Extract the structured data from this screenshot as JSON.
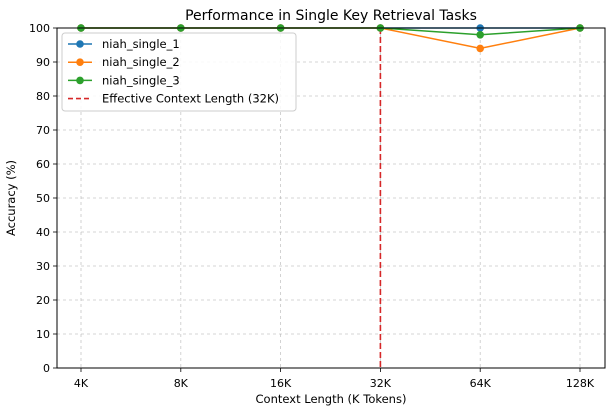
{
  "chart_data": {
    "type": "line",
    "title": "Performance in Single Key Retrieval Tasks",
    "xlabel": "Context Length (K Tokens)",
    "ylabel": "Accuracy (%)",
    "categories": [
      "4K",
      "8K",
      "16K",
      "32K",
      "64K",
      "128K"
    ],
    "ylim": [
      0,
      100
    ],
    "yticks": [
      0,
      10,
      20,
      30,
      40,
      50,
      60,
      70,
      80,
      90,
      100
    ],
    "grid": true,
    "legend_position": "top-left",
    "series": [
      {
        "name": "niah_single_1",
        "color": "#1f77b4",
        "values": [
          100,
          100,
          100,
          100,
          100,
          100
        ]
      },
      {
        "name": "niah_single_2",
        "color": "#ff7f0e",
        "values": [
          100,
          100,
          100,
          100,
          94,
          100
        ]
      },
      {
        "name": "niah_single_3",
        "color": "#2ca02c",
        "values": [
          100,
          100,
          100,
          100,
          98,
          100
        ]
      }
    ],
    "reference_line": {
      "name": "Effective Context Length (32K)",
      "category": "32K",
      "color": "#d62728"
    }
  }
}
